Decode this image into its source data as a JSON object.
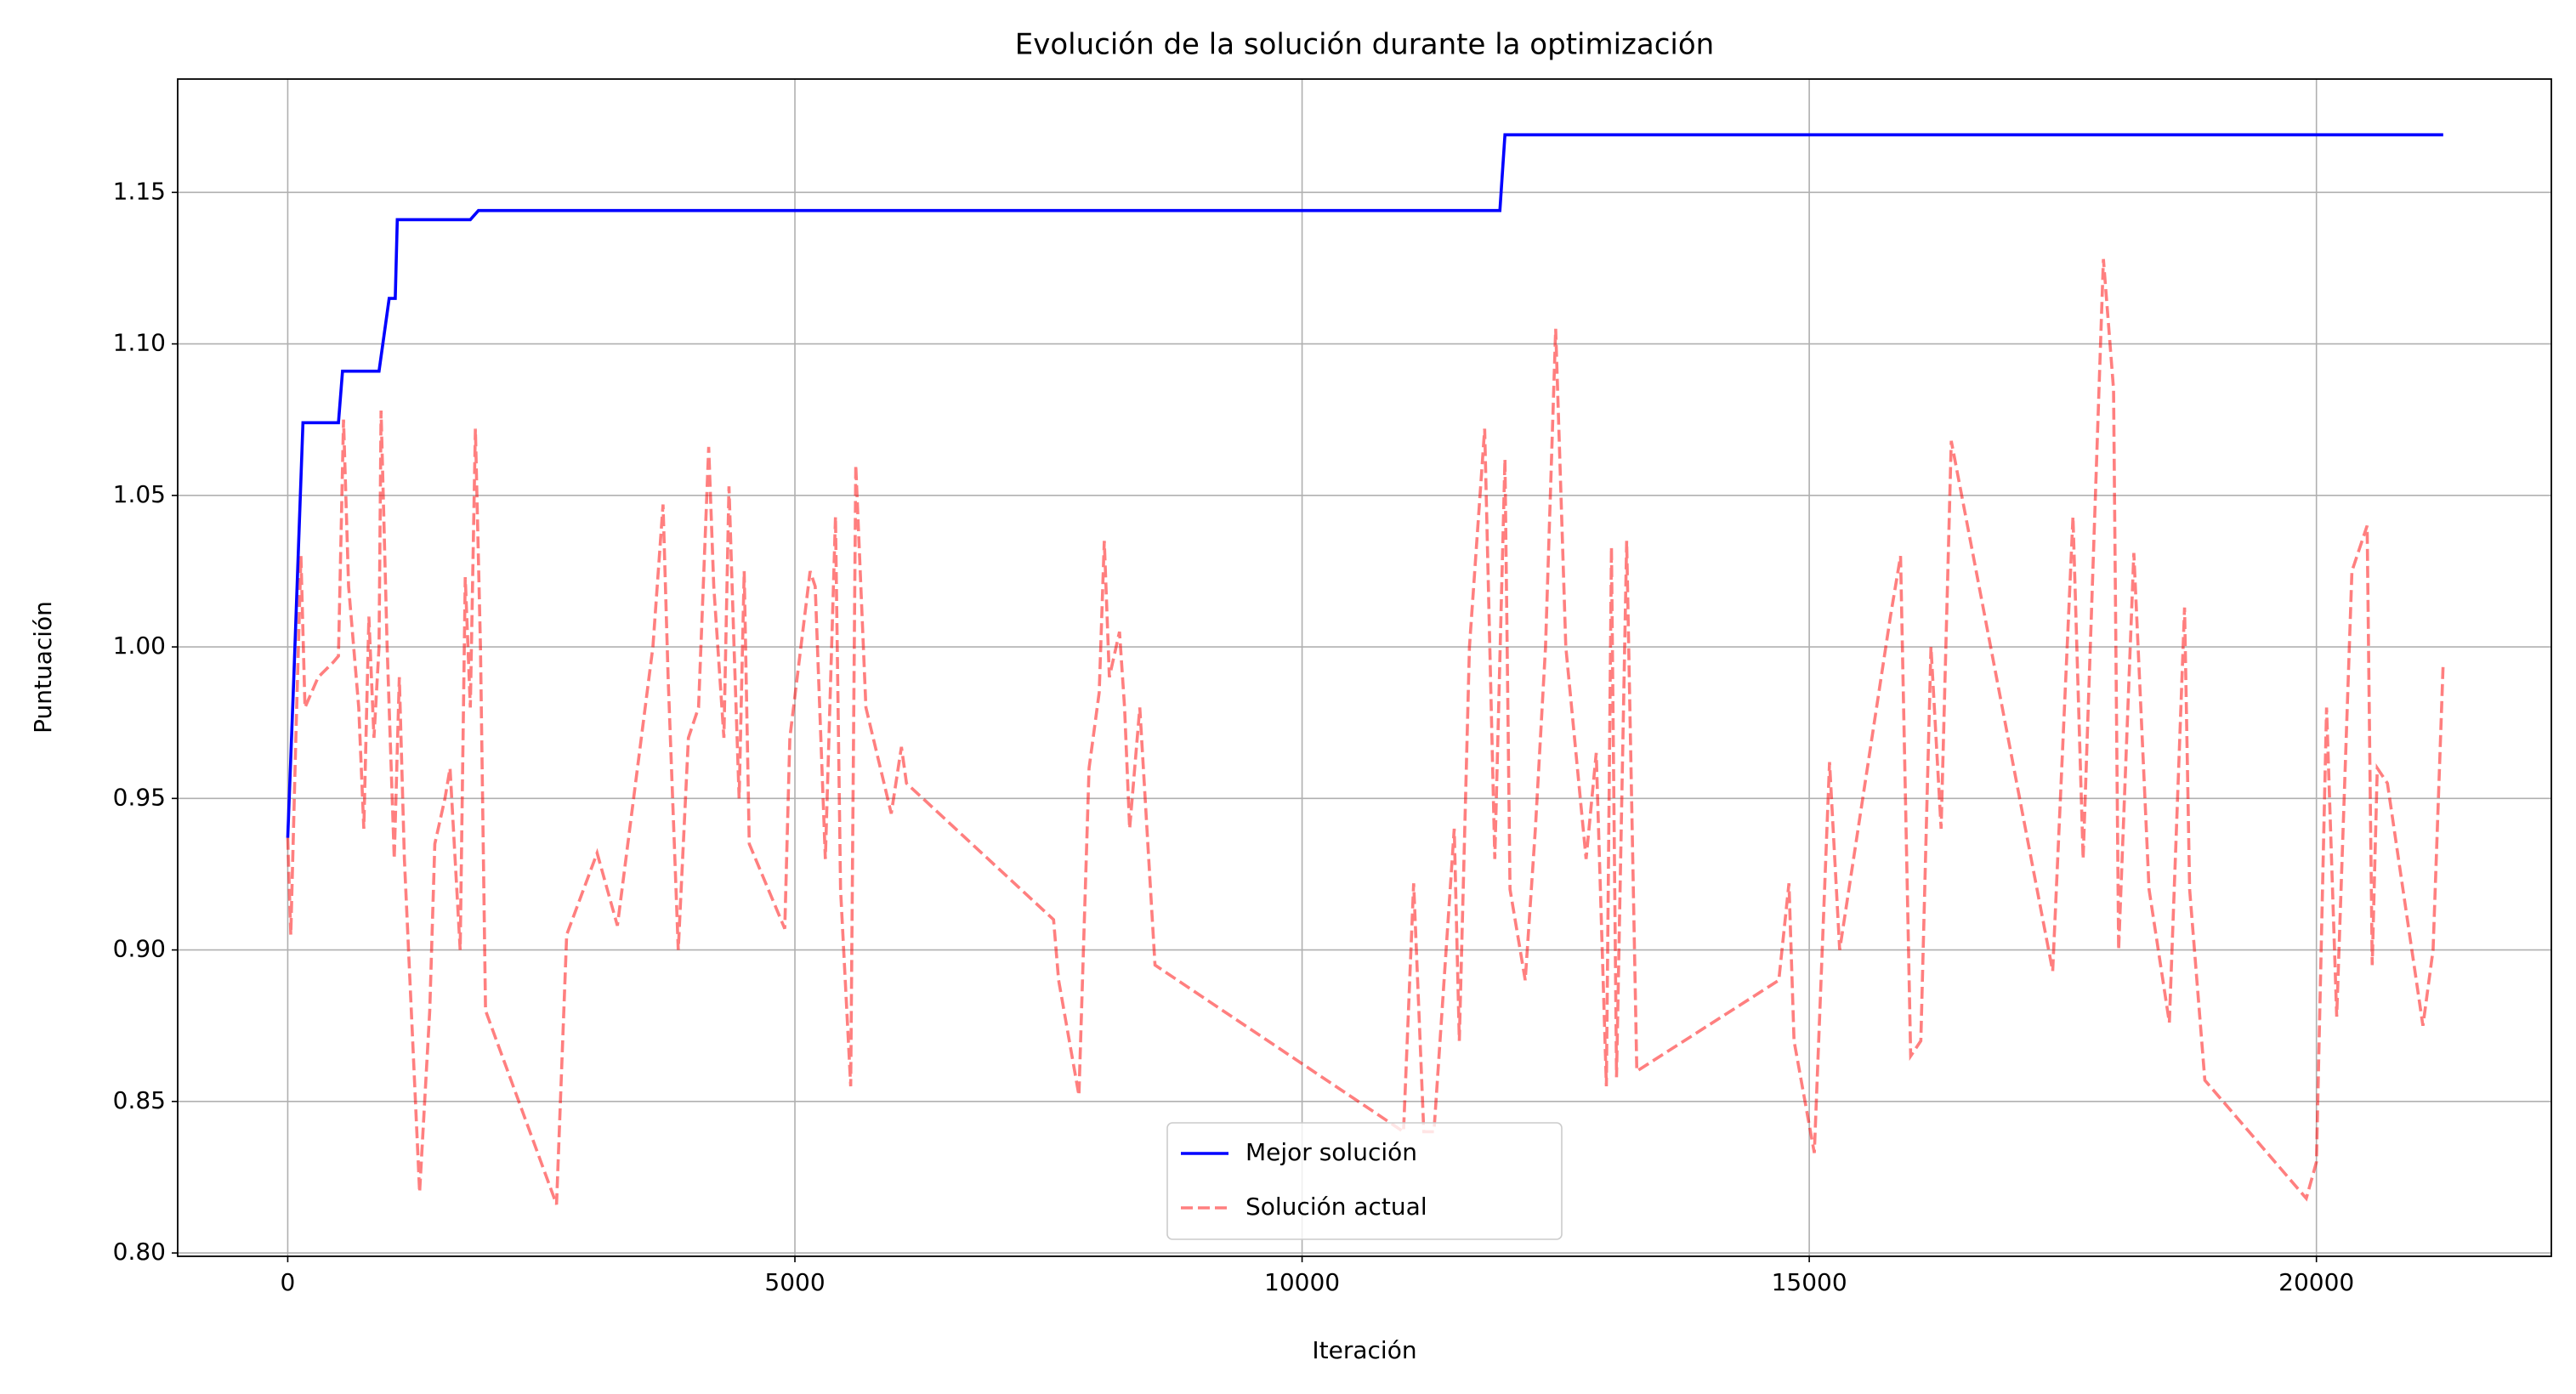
{
  "chart_data": {
    "type": "line",
    "title": "Evolución de la solución durante la optimización",
    "x_label": "Iteración",
    "y_label": "Puntuación",
    "xlim": [
      -1085,
      22316
    ],
    "ylim": [
      0.7989,
      1.1874
    ],
    "xticks": [
      0,
      5000,
      10000,
      15000,
      20000
    ],
    "yticks": [
      {
        "value": 0.8,
        "label": "0.80"
      },
      0.85,
      {
        "value": 0.9,
        "label": "0.90"
      },
      0.95,
      {
        "value": 1.0,
        "label": "1.00"
      },
      1.05,
      {
        "value": 1.1,
        "label": "1.10"
      },
      1.15
    ],
    "grid": true,
    "legend": "lower center",
    "series": [
      {
        "name": "Mejor solución",
        "color": "#0000ff",
        "alpha": 1,
        "linestyle": "solid",
        "x": [
          0,
          60,
          150,
          500,
          540,
          900,
          1000,
          1060,
          1080,
          1800,
          1880,
          11950,
          12000,
          21250
        ],
        "values": [
          0.937,
          0.99,
          1.074,
          1.074,
          1.091,
          1.091,
          1.115,
          1.115,
          1.141,
          1.141,
          1.144,
          1.144,
          1.169,
          1.169
        ]
      },
      {
        "name": "Solución actual",
        "color": "#ff0000",
        "alpha": 0.5,
        "linestyle": "dashed",
        "x": [
          0,
          30,
          80,
          130,
          170,
          300,
          450,
          500,
          550,
          600,
          700,
          750,
          800,
          850,
          900,
          920,
          980,
          1050,
          1100,
          1150,
          1300,
          1400,
          1450,
          1550,
          1600,
          1700,
          1750,
          1800,
          1850,
          1900,
          1950,
          2650,
          2750,
          3050,
          3250,
          3600,
          3700,
          3750,
          3850,
          3950,
          4050,
          4150,
          4200,
          4300,
          4350,
          4400,
          4450,
          4500,
          4550,
          4900,
          4950,
          5150,
          5200,
          5300,
          5400,
          5450,
          5550,
          5600,
          5700,
          5950,
          6050,
          6100,
          7550,
          7600,
          7800,
          7900,
          8000,
          8050,
          8100,
          8200,
          8250,
          8300,
          8400,
          8550,
          11000,
          11100,
          11200,
          11300,
          11500,
          11550,
          11650,
          11800,
          11900,
          12000,
          12050,
          12200,
          12300,
          12400,
          12500,
          12600,
          12800,
          12900,
          13000,
          13050,
          13100,
          13200,
          13300,
          14700,
          14800,
          14850,
          15050,
          15200,
          15300,
          15800,
          15900,
          16000,
          16100,
          16200,
          16300,
          16400,
          17400,
          17600,
          17700,
          17900,
          18000,
          18050,
          18200,
          18350,
          18550,
          18700,
          18750,
          18900,
          19900,
          20000,
          20100,
          20200,
          20350,
          20500,
          20550,
          20600,
          20700,
          21050,
          21150,
          21250
        ],
        "values": [
          0.937,
          0.905,
          0.97,
          1.03,
          0.98,
          0.99,
          0.995,
          0.997,
          1.075,
          1.02,
          0.98,
          0.94,
          1.01,
          0.97,
          1.0,
          1.078,
          1.0,
          0.93,
          0.99,
          0.93,
          0.82,
          0.88,
          0.935,
          0.95,
          0.96,
          0.9,
          1.023,
          0.98,
          1.072,
          1.0,
          0.88,
          0.816,
          0.905,
          0.932,
          0.908,
          1.0,
          1.047,
          0.99,
          0.9,
          0.97,
          0.98,
          1.066,
          1.02,
          0.97,
          1.053,
          1.0,
          0.95,
          1.025,
          0.935,
          0.907,
          0.97,
          1.025,
          1.02,
          0.93,
          1.043,
          0.92,
          0.855,
          1.06,
          0.98,
          0.945,
          0.967,
          0.955,
          0.91,
          0.89,
          0.852,
          0.96,
          0.985,
          1.035,
          0.99,
          1.005,
          0.98,
          0.94,
          0.98,
          0.895,
          0.84,
          0.922,
          0.84,
          0.84,
          0.94,
          0.87,
          1.0,
          1.072,
          0.93,
          1.062,
          0.92,
          0.89,
          0.94,
          1.0,
          1.105,
          1.0,
          0.93,
          0.965,
          0.855,
          1.033,
          0.858,
          1.035,
          0.86,
          0.89,
          0.922,
          0.87,
          0.833,
          0.962,
          0.9,
          1.01,
          1.03,
          0.865,
          0.87,
          1.0,
          0.94,
          1.068,
          0.893,
          1.043,
          0.93,
          1.128,
          1.085,
          0.9,
          1.031,
          0.92,
          0.876,
          1.013,
          0.92,
          0.857,
          0.818,
          0.83,
          0.98,
          0.878,
          1.025,
          1.04,
          0.895,
          0.96,
          0.955,
          0.875,
          0.9,
          0.995
        ]
      }
    ]
  }
}
